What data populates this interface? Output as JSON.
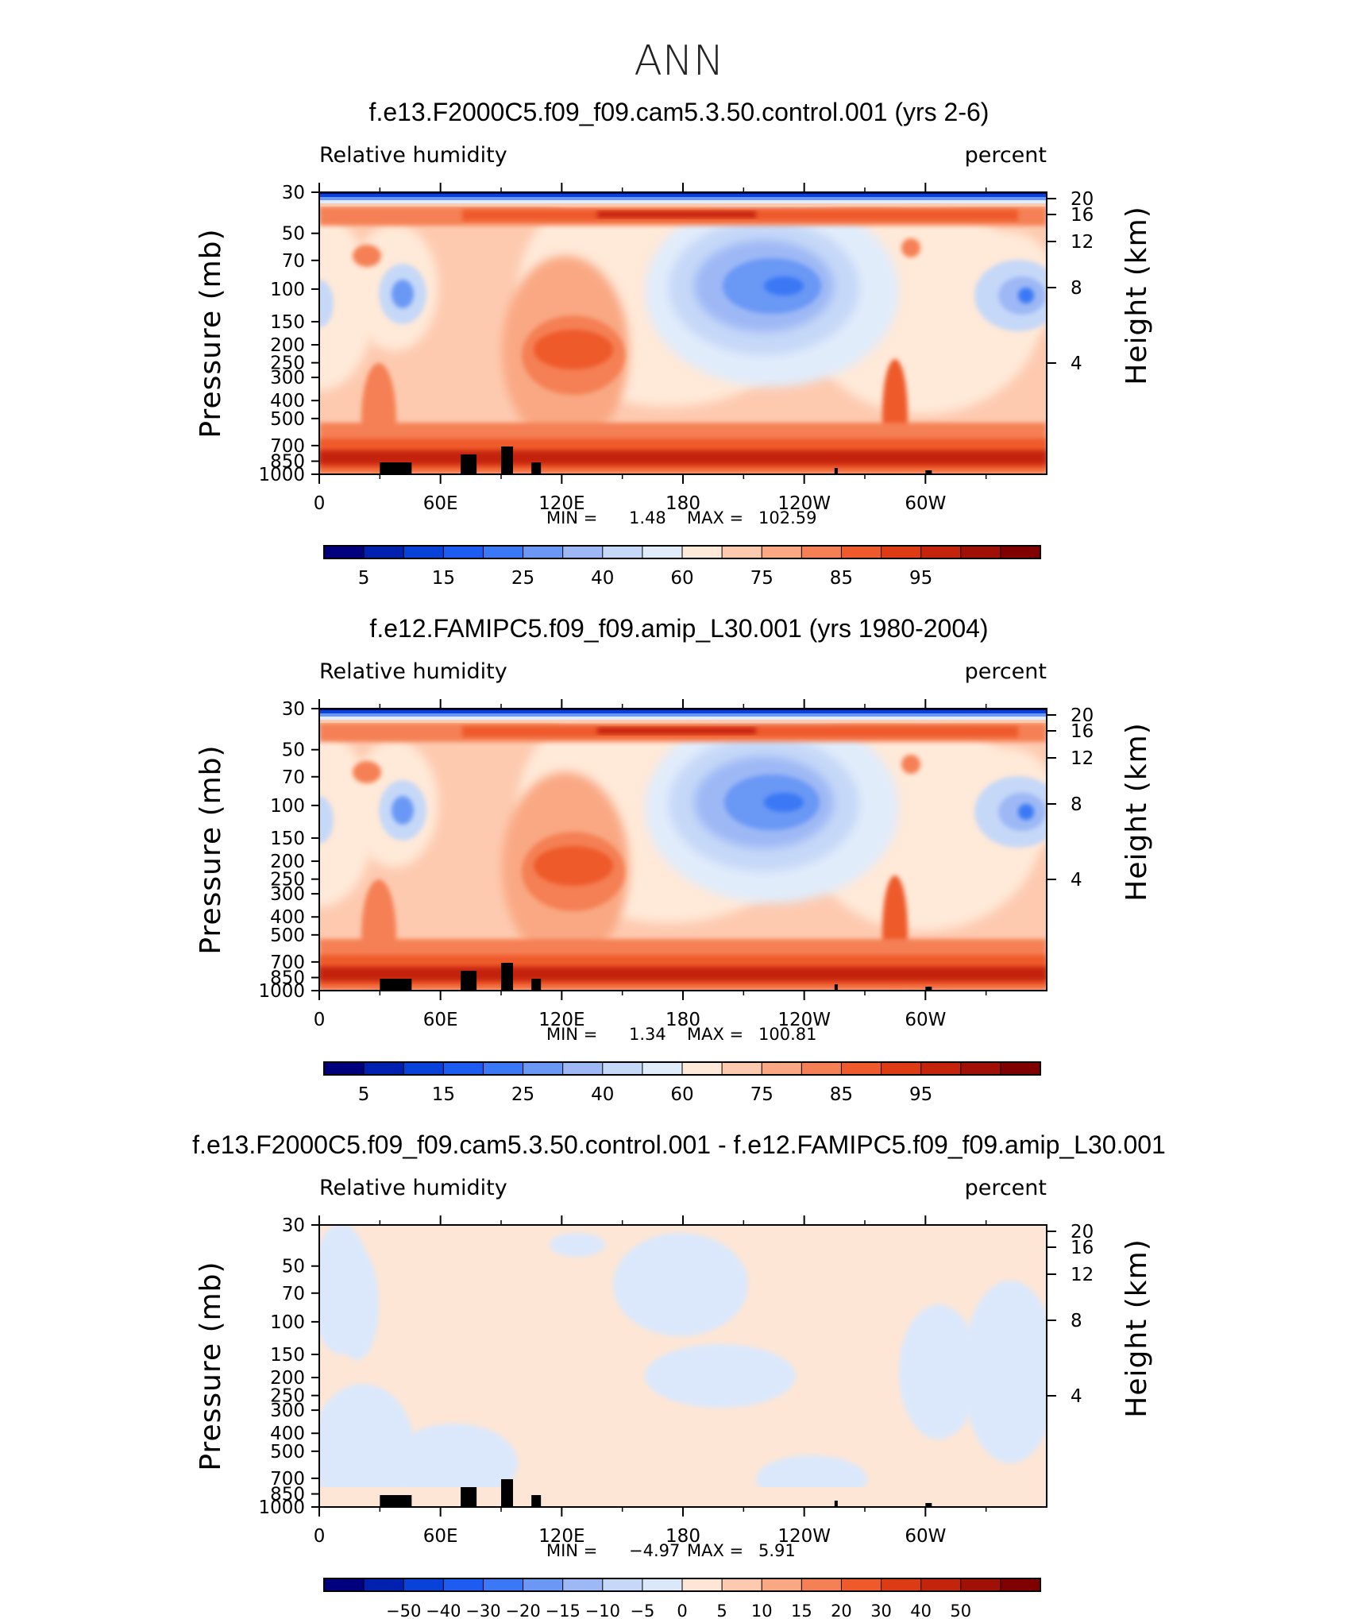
{
  "season": "ANN",
  "colors": {
    "rh_levels": [
      "#00007f",
      "#0020b0",
      "#0842d8",
      "#1c5cf0",
      "#3a78f5",
      "#6b98f5",
      "#9db8f5",
      "#c6d8f8",
      "#e1ecfb",
      "#ffe9d8",
      "#fdcab0",
      "#f9a883",
      "#f58055",
      "#ee5a2c",
      "#dd3b14",
      "#c4240c",
      "#a11006",
      "#800000"
    ],
    "diff_levels": [
      "#00007f",
      "#0020b0",
      "#0842d8",
      "#1c5cf0",
      "#3a78f5",
      "#6b98f5",
      "#9db8f5",
      "#c6d8f8",
      "#dbe8fb",
      "#fde6d6",
      "#fdcab0",
      "#f9a883",
      "#f58055",
      "#ee5a2c",
      "#dd3b14",
      "#c4240c",
      "#a11006",
      "#800000"
    ],
    "terrain": "#000000"
  },
  "chart_data": [
    {
      "type": "heatmap",
      "title": "f.e13.F2000C5.f09_f09.cam5.3.50.control.001 (yrs 2-6)",
      "left_label": "Relative humidity",
      "right_label": "percent",
      "ylabel": "Pressure (mb)",
      "ylabel2": "Height (km)",
      "xticks": [
        "0",
        "60E",
        "120E",
        "180",
        "120W",
        "60W"
      ],
      "yticks": [
        "30",
        "50",
        "70",
        "100",
        "150",
        "200",
        "250",
        "300",
        "400",
        "500",
        "700",
        "850",
        "1000"
      ],
      "y2ticks": [
        "20",
        "16",
        "12",
        "8",
        "4"
      ],
      "min_label": "MIN =",
      "min": "1.48",
      "max_label": "MAX =",
      "max": "102.59",
      "colorbar_labels": [
        "5",
        "15",
        "25",
        "40",
        "60",
        "75",
        "85",
        "95"
      ],
      "variant": "control"
    },
    {
      "type": "heatmap",
      "title": "f.e12.FAMIPC5.f09_f09.amip_L30.001 (yrs 1980-2004)",
      "left_label": "Relative humidity",
      "right_label": "percent",
      "ylabel": "Pressure (mb)",
      "ylabel2": "Height (km)",
      "xticks": [
        "0",
        "60E",
        "120E",
        "180",
        "120W",
        "60W"
      ],
      "yticks": [
        "30",
        "50",
        "70",
        "100",
        "150",
        "200",
        "250",
        "300",
        "400",
        "500",
        "700",
        "850",
        "1000"
      ],
      "y2ticks": [
        "20",
        "16",
        "12",
        "8",
        "4"
      ],
      "min_label": "MIN =",
      "min": "1.34",
      "max_label": "MAX =",
      "max": "100.81",
      "colorbar_labels": [
        "5",
        "15",
        "25",
        "40",
        "60",
        "75",
        "85",
        "95"
      ],
      "variant": "amip"
    },
    {
      "type": "heatmap",
      "title": "f.e13.F2000C5.f09_f09.cam5.3.50.control.001 - f.e12.FAMIPC5.f09_f09.amip_L30.001",
      "left_label": "Relative humidity",
      "right_label": "percent",
      "ylabel": "Pressure (mb)",
      "ylabel2": "Height (km)",
      "xticks": [
        "0",
        "60E",
        "120E",
        "180",
        "120W",
        "60W"
      ],
      "yticks": [
        "30",
        "50",
        "70",
        "100",
        "150",
        "200",
        "250",
        "300",
        "400",
        "500",
        "700",
        "850",
        "1000"
      ],
      "y2ticks": [
        "20",
        "16",
        "12",
        "8",
        "4"
      ],
      "min_label": "MIN =",
      "min": "−4.97",
      "max_label": "MAX =",
      "max": "5.91",
      "colorbar_labels": [
        "−50",
        "−40",
        "−30",
        "−20",
        "−15",
        "−10",
        "−5",
        "0",
        "5",
        "10",
        "15",
        "20",
        "30",
        "40",
        "50"
      ],
      "variant": "diff"
    }
  ]
}
